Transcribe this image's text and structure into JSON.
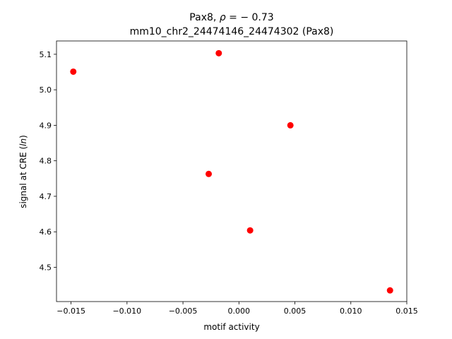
{
  "chart_data": {
    "type": "scatter",
    "title_gene": "Pax8",
    "title_stat_symbol": "ρ",
    "title_stat_value": "= − 0.73",
    "subtitle": "mm10_chr2_24474146_24474302 (Pax8)",
    "xlabel": "motif activity",
    "ylabel_prefix": "signal at CRE (",
    "ylabel_italic": "ln",
    "ylabel_suffix": ")",
    "xlim": [
      -0.0163,
      0.015
    ],
    "ylim": [
      4.4035,
      5.1375
    ],
    "xticks": [
      -0.015,
      -0.01,
      -0.005,
      0.0,
      0.005,
      0.01,
      0.015
    ],
    "xtick_labels": [
      "−0.015",
      "−0.010",
      "−0.005",
      "0.000",
      "0.005",
      "0.010",
      "0.015"
    ],
    "yticks": [
      4.5,
      4.6,
      4.7,
      4.8,
      4.9,
      5.0,
      5.1
    ],
    "ytick_labels": [
      "4.5",
      "4.6",
      "4.7",
      "4.8",
      "4.9",
      "5.0",
      "5.1"
    ],
    "points": [
      {
        "x": -0.0148,
        "y": 5.051
      },
      {
        "x": -0.0018,
        "y": 5.103
      },
      {
        "x": -0.0027,
        "y": 4.763
      },
      {
        "x": 0.001,
        "y": 4.604
      },
      {
        "x": 0.0046,
        "y": 4.9
      },
      {
        "x": 0.0135,
        "y": 4.435
      }
    ],
    "marker_color": "#ff0000",
    "grid": false,
    "legend": "none"
  }
}
